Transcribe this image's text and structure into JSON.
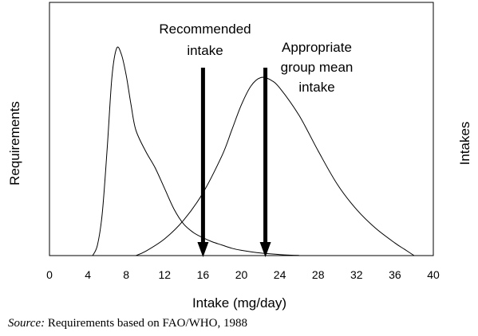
{
  "chart_data": {
    "type": "line",
    "xlabel": "Intake (mg/day)",
    "ylabel_left": "Requirements",
    "ylabel_right": "Intakes",
    "xlim": [
      0,
      40
    ],
    "x_ticks": [
      "0",
      "4",
      "8",
      "12",
      "16",
      "20",
      "24",
      "28",
      "32",
      "36",
      "40"
    ],
    "y_ticks": "none",
    "grid": false,
    "series": [
      {
        "name": "Requirements",
        "color": "#000000",
        "points": [
          [
            4.5,
            0
          ],
          [
            5.0,
            0.05
          ],
          [
            5.5,
            0.2
          ],
          [
            6.0,
            0.5
          ],
          [
            6.5,
            0.85
          ],
          [
            7.0,
            0.99
          ],
          [
            7.5,
            0.96
          ],
          [
            8.0,
            0.86
          ],
          [
            8.5,
            0.72
          ],
          [
            9.0,
            0.6
          ],
          [
            10.0,
            0.5
          ],
          [
            11.0,
            0.42
          ],
          [
            12.0,
            0.32
          ],
          [
            13.0,
            0.22
          ],
          [
            14.0,
            0.15
          ],
          [
            15.0,
            0.11
          ],
          [
            16.0,
            0.085
          ],
          [
            17.0,
            0.065
          ],
          [
            18.0,
            0.05
          ],
          [
            19.0,
            0.035
          ],
          [
            20.0,
            0.025
          ],
          [
            22.0,
            0.012
          ],
          [
            24.0,
            0.005
          ],
          [
            26.0,
            0.001
          ]
        ]
      },
      {
        "name": "Intakes",
        "color": "#000000",
        "points": [
          [
            9.0,
            0
          ],
          [
            10.0,
            0.02
          ],
          [
            12.0,
            0.08
          ],
          [
            14.0,
            0.17
          ],
          [
            16.0,
            0.3
          ],
          [
            18.0,
            0.48
          ],
          [
            19.0,
            0.6
          ],
          [
            20.0,
            0.72
          ],
          [
            21.0,
            0.81
          ],
          [
            22.0,
            0.85
          ],
          [
            23.0,
            0.84
          ],
          [
            24.0,
            0.8
          ],
          [
            26.0,
            0.67
          ],
          [
            28.0,
            0.5
          ],
          [
            30.0,
            0.34
          ],
          [
            32.0,
            0.22
          ],
          [
            34.0,
            0.13
          ],
          [
            36.0,
            0.06
          ],
          [
            37.0,
            0.03
          ],
          [
            38.0,
            0.0
          ]
        ]
      }
    ],
    "annotations": [
      {
        "lines": [
          "Recommended",
          "intake"
        ],
        "arrow_x": 16
      },
      {
        "lines": [
          "Appropriate",
          "group mean",
          "intake"
        ],
        "arrow_x": 22.5
      }
    ]
  },
  "source": {
    "prefix": "Source:",
    "text": " Requirements based on FAO/WHO, 1988"
  }
}
